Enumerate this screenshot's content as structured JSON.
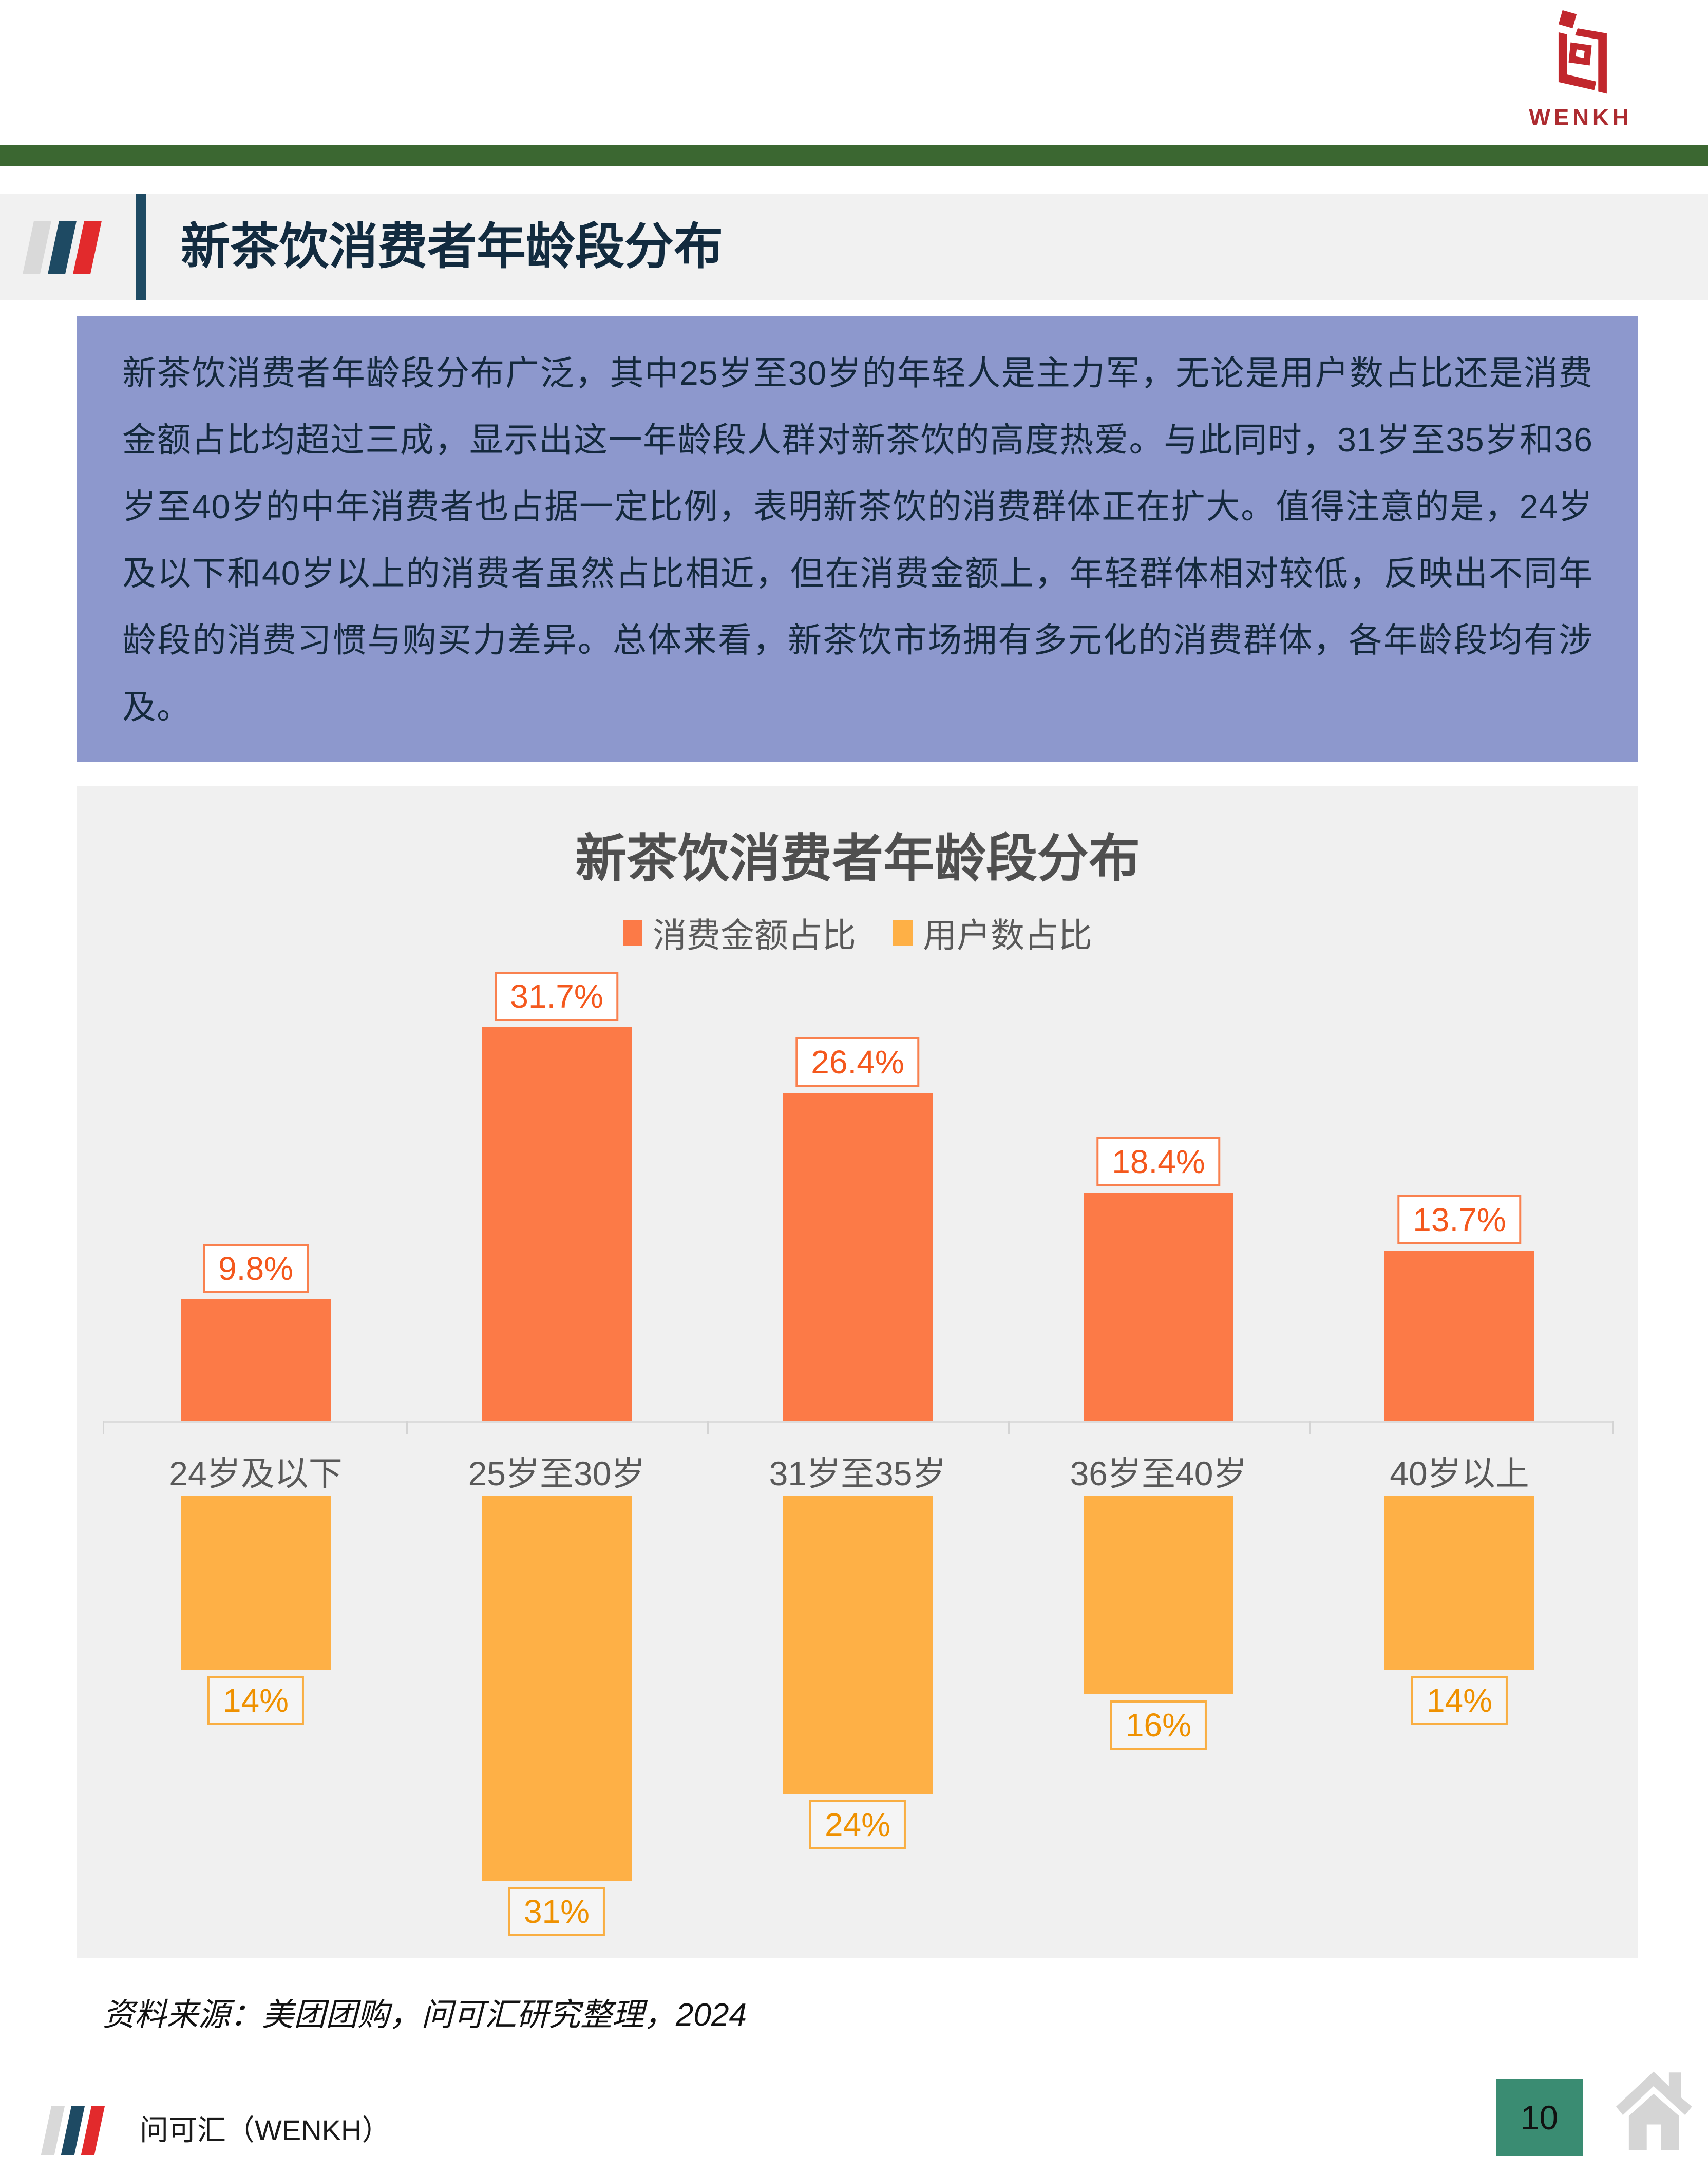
{
  "logo": {
    "wordmark": "WENKH",
    "brand_color": "#AD2B30"
  },
  "header": {
    "title": "新茶饮消费者年龄段分布"
  },
  "summary": {
    "text": "新茶饮消费者年龄段分布广泛，其中25岁至30岁的年轻人是主力军，无论是用户数占比还是消费金额占比均超过三成，显示出这一年龄段人群对新茶饮的高度热爱。与此同时，31岁至35岁和36岁至40岁的中年消费者也占据一定比例，表明新茶饮的消费群体正在扩大。值得注意的是，24岁及以下和40岁以上的消费者虽然占比相近，但在消费金额上，年轻群体相对较低，反映出不同年龄段的消费习惯与购买力差异。总体来看，新茶饮市场拥有多元化的消费群体，各年龄段均有涉及。"
  },
  "chart_data": {
    "type": "bar",
    "title": "新茶饮消费者年龄段分布",
    "legend_position": "top",
    "grid": false,
    "axis_color": "#DCDCDC",
    "panel_background": "#F0F0F0",
    "categories": [
      "24岁及以下",
      "25岁至30岁",
      "31岁至35岁",
      "36岁至40岁",
      "40岁以上"
    ],
    "series": [
      {
        "name": "消费金额占比",
        "direction": "up",
        "color": "#FC7A47",
        "label_color": "#F4581D",
        "values": [
          9.8,
          31.7,
          26.4,
          18.4,
          13.7
        ],
        "labels": [
          "9.8%",
          "31.7%",
          "26.4%",
          "18.4%",
          "13.7%"
        ]
      },
      {
        "name": "用户数占比",
        "direction": "down",
        "color": "#FEB046",
        "label_color": "#EF9100",
        "values": [
          14,
          31,
          24,
          16,
          14
        ],
        "labels": [
          "14%",
          "31%",
          "24%",
          "16%",
          "14%"
        ]
      }
    ],
    "ylim": [
      0,
      33
    ]
  },
  "source": {
    "text": "资料来源：美团团购，问可汇研究整理，2024"
  },
  "footer": {
    "company": "问可汇（WENKH）",
    "page_number": "10"
  },
  "colors": {
    "top_bar_green": "#3B6731",
    "header_accent_navy": "#1E4A63",
    "stripe_gray": "#D9D9D9",
    "stripe_navy": "#1E4A63",
    "stripe_red": "#E22A2C",
    "summary_background": "#8D98CD",
    "summary_text": "#14293D",
    "page_number_background": "#3A8C72",
    "home_icon_gray": "#D5D5D5"
  }
}
